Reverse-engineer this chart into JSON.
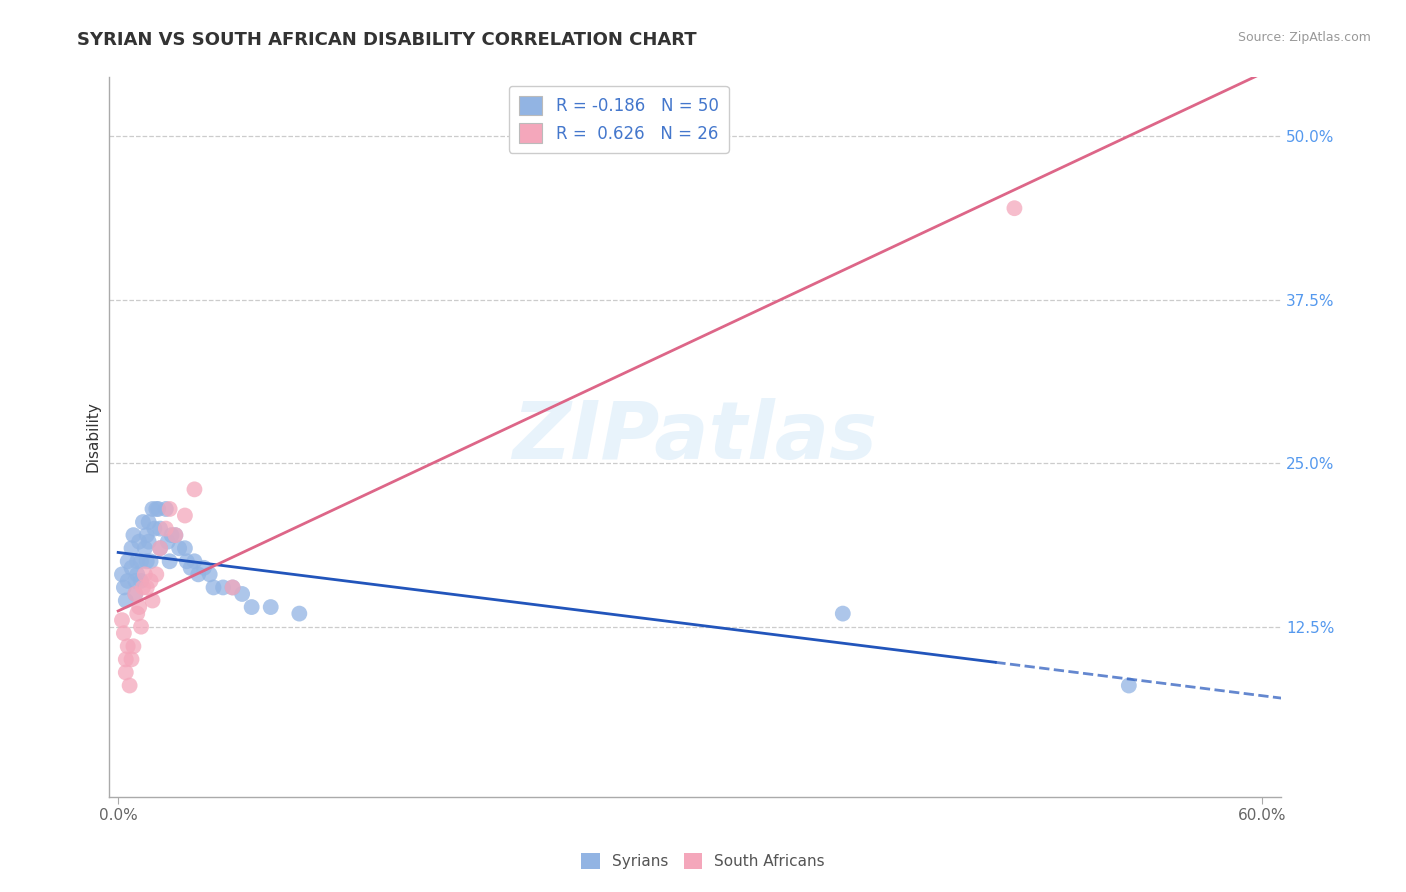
{
  "title": "SYRIAN VS SOUTH AFRICAN DISABILITY CORRELATION CHART",
  "source": "Source: ZipAtlas.com",
  "ylabel": "Disability",
  "xlim": [
    -0.005,
    0.61
  ],
  "ylim": [
    -0.005,
    0.545
  ],
  "x_ticks": [
    0.0,
    0.6
  ],
  "x_tick_labels": [
    "0.0%",
    "60.0%"
  ],
  "y_tick_labels_right": [
    "12.5%",
    "25.0%",
    "37.5%",
    "50.0%"
  ],
  "y_tick_vals_right": [
    0.125,
    0.25,
    0.375,
    0.5
  ],
  "syrian_color": "#92b4e3",
  "sa_color": "#f4a7bb",
  "syrian_line_color": "#2255bb",
  "sa_line_color": "#dd6688",
  "background_color": "#ffffff",
  "watermark": "ZIPatlas",
  "R_syrian": -0.186,
  "N_syrian": 50,
  "R_sa": 0.626,
  "N_sa": 26,
  "syrians_x": [
    0.002,
    0.003,
    0.004,
    0.005,
    0.005,
    0.007,
    0.007,
    0.008,
    0.009,
    0.009,
    0.01,
    0.01,
    0.011,
    0.012,
    0.012,
    0.013,
    0.014,
    0.015,
    0.015,
    0.016,
    0.016,
    0.017,
    0.018,
    0.019,
    0.02,
    0.021,
    0.022,
    0.022,
    0.025,
    0.026,
    0.027,
    0.028,
    0.03,
    0.032,
    0.035,
    0.036,
    0.038,
    0.04,
    0.042,
    0.045,
    0.048,
    0.05,
    0.055,
    0.06,
    0.065,
    0.07,
    0.08,
    0.095,
    0.38,
    0.53
  ],
  "syrians_y": [
    0.165,
    0.155,
    0.145,
    0.175,
    0.16,
    0.185,
    0.17,
    0.195,
    0.16,
    0.15,
    0.175,
    0.165,
    0.19,
    0.175,
    0.16,
    0.205,
    0.185,
    0.195,
    0.175,
    0.205,
    0.19,
    0.175,
    0.215,
    0.2,
    0.215,
    0.215,
    0.2,
    0.185,
    0.215,
    0.19,
    0.175,
    0.195,
    0.195,
    0.185,
    0.185,
    0.175,
    0.17,
    0.175,
    0.165,
    0.17,
    0.165,
    0.155,
    0.155,
    0.155,
    0.15,
    0.14,
    0.14,
    0.135,
    0.135,
    0.08
  ],
  "sa_x": [
    0.002,
    0.003,
    0.004,
    0.004,
    0.005,
    0.006,
    0.007,
    0.008,
    0.009,
    0.01,
    0.011,
    0.012,
    0.013,
    0.014,
    0.015,
    0.017,
    0.018,
    0.02,
    0.022,
    0.025,
    0.027,
    0.03,
    0.035,
    0.04,
    0.06,
    0.47
  ],
  "sa_y": [
    0.13,
    0.12,
    0.1,
    0.09,
    0.11,
    0.08,
    0.1,
    0.11,
    0.15,
    0.135,
    0.14,
    0.125,
    0.155,
    0.165,
    0.155,
    0.16,
    0.145,
    0.165,
    0.185,
    0.2,
    0.215,
    0.195,
    0.21,
    0.23,
    0.155,
    0.445
  ]
}
